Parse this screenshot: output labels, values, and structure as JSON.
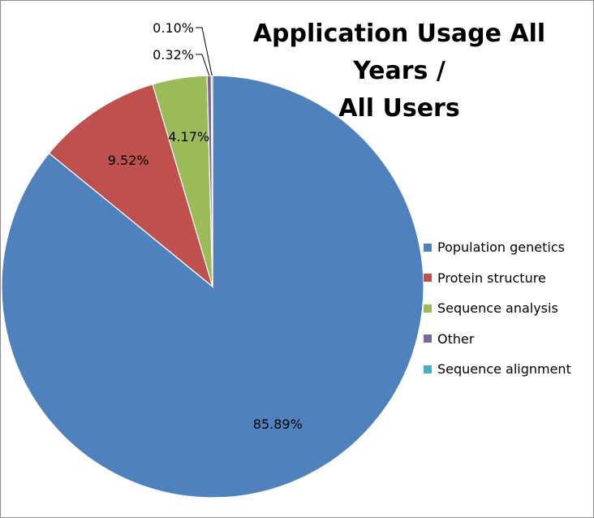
{
  "chart_data": {
    "type": "pie",
    "title_lines": [
      "Application Usage All Years /",
      "All Users"
    ],
    "categories": [
      "Population genetics",
      "Protein structure",
      "Sequence analysis",
      "Other",
      "Sequence alignment"
    ],
    "values": [
      85.89,
      9.52,
      4.17,
      0.32,
      0.1
    ],
    "labels": [
      "85.89%",
      "9.52%",
      "4.17%",
      "0.32%",
      "0.10%"
    ],
    "colors": [
      "#4F81BD",
      "#C0504D",
      "#9BBB59",
      "#8064A2",
      "#4BACC6"
    ],
    "legend_position": "right",
    "start_angle": "12 o'clock",
    "direction": "clockwise"
  }
}
